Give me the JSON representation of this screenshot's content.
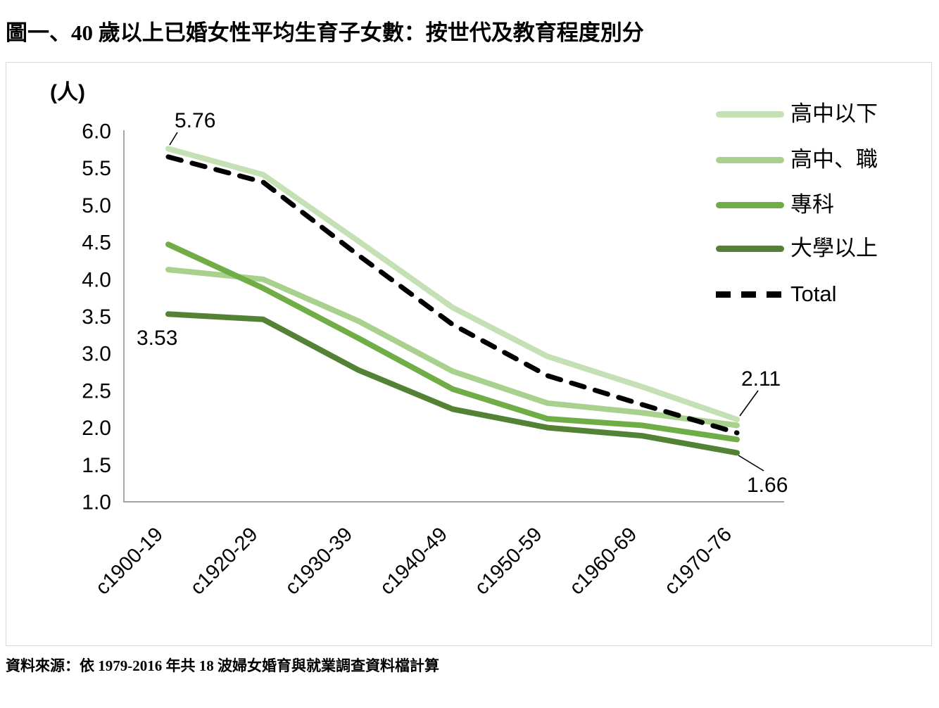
{
  "title": "圖一、40 歲以上已婚女性平均生育子女數：按世代及教育程度別分",
  "source_note": "資料來源：依 1979-2016 年共 18 波婦女婚育與就業調查資料檔計算",
  "y_axis_unit": "(人)",
  "chart_data": {
    "type": "line",
    "title": "圖一、40 歲以上已婚女性平均生育子女數：按世代及教育程度別分",
    "categories": [
      "c1900-19",
      "c1920-29",
      "c1930-39",
      "c1940-49",
      "c1950-59",
      "c1960-69",
      "c1970-76"
    ],
    "series": [
      {
        "name": "高中以下",
        "color": "#c5e0b4",
        "dash": false,
        "values": [
          5.76,
          5.41,
          4.52,
          3.62,
          2.96,
          2.55,
          2.11
        ]
      },
      {
        "name": "高中、職",
        "color": "#a9d18e",
        "dash": false,
        "values": [
          4.13,
          4.0,
          3.44,
          2.76,
          2.33,
          2.2,
          2.03
        ]
      },
      {
        "name": "專科",
        "color": "#70ad47",
        "dash": false,
        "values": [
          4.47,
          3.88,
          3.21,
          2.52,
          2.12,
          2.03,
          1.84
        ]
      },
      {
        "name": "大學以上",
        "color": "#548235",
        "dash": false,
        "values": [
          3.53,
          3.46,
          2.78,
          2.25,
          2.0,
          1.89,
          1.66
        ]
      },
      {
        "name": "Total",
        "color": "#000000",
        "dash": true,
        "values": [
          5.65,
          5.31,
          4.33,
          3.39,
          2.7,
          2.31,
          1.93
        ]
      }
    ],
    "ylabel": "(人)",
    "xlabel": "",
    "ylim": [
      1.0,
      6.0
    ],
    "y_tick_labels": [
      "6.0",
      "5.5",
      "5.0",
      "4.5",
      "4.0",
      "3.5",
      "3.0",
      "2.5",
      "2.0",
      "1.5",
      "1.0"
    ],
    "grid": false,
    "legend_position": "right",
    "annotations": [
      {
        "text": "5.76",
        "series": "高中以下",
        "category": "c1900-19"
      },
      {
        "text": "3.53",
        "series": "大學以上",
        "category": "c1900-19"
      },
      {
        "text": "2.11",
        "series": "高中以下",
        "category": "c1970-76"
      },
      {
        "text": "1.66",
        "series": "大學以上",
        "category": "c1970-76"
      }
    ],
    "axis_color": "#a6a6a6"
  }
}
